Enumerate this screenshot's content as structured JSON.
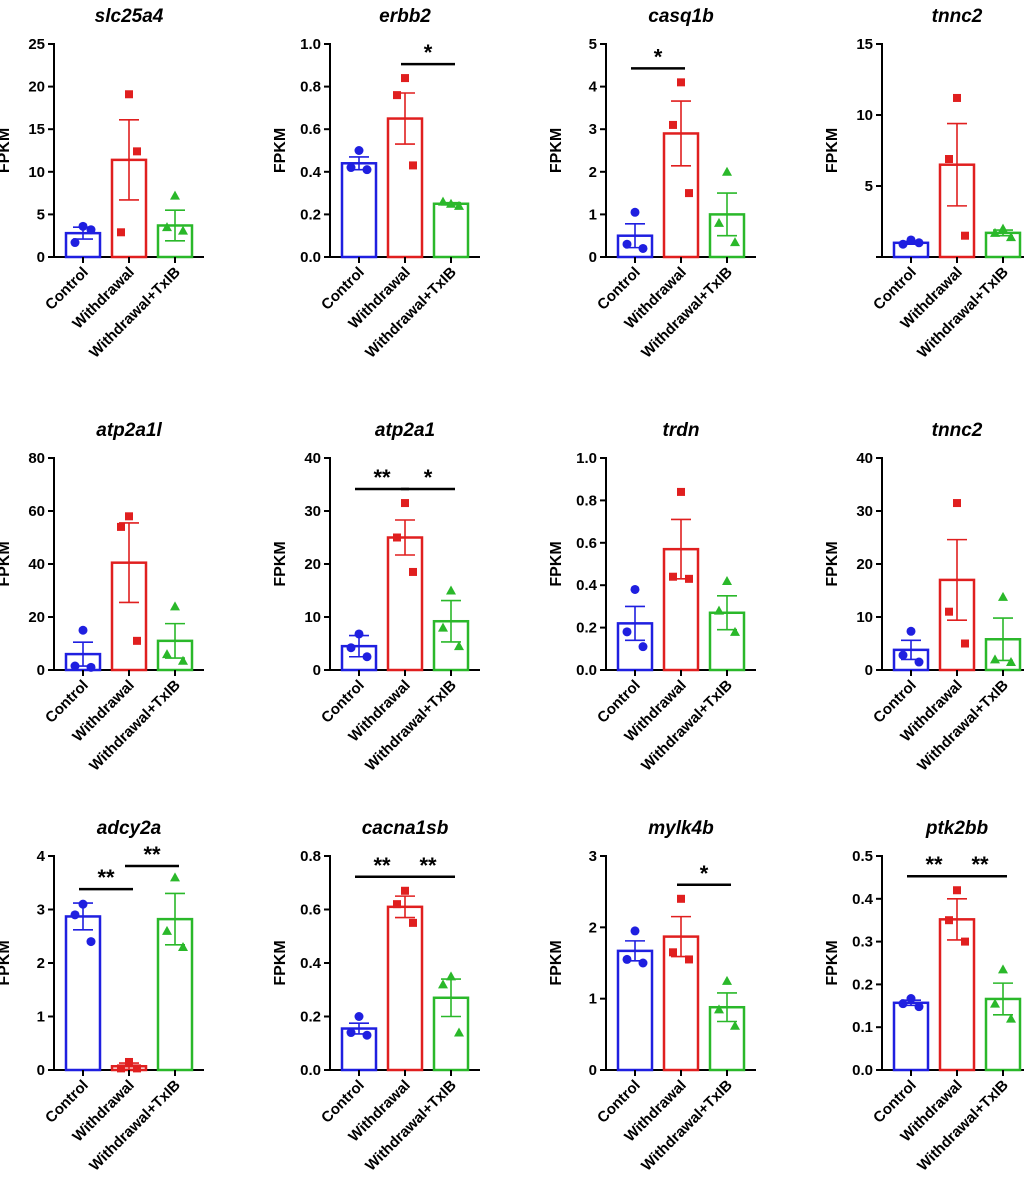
{
  "colors": {
    "control": "#1f1fe0",
    "withdrawal": "#e01f1f",
    "txib": "#2ab82a",
    "axis": "#000000"
  },
  "chart_data": [
    {
      "type": "bar",
      "title": "slc25a4",
      "ylabel": "FPKM",
      "categories": [
        "Control",
        "Withdrawal",
        "Withdrawal+TxIB"
      ],
      "ylim": [
        0,
        25
      ],
      "yticks": [
        "0",
        "5",
        "10",
        "15",
        "20",
        "25"
      ],
      "values": [
        2.8,
        11.4,
        3.7
      ],
      "sem": [
        0.7,
        4.7,
        1.8
      ],
      "points": [
        [
          3.6,
          1.7,
          3.2
        ],
        [
          19.1,
          2.9,
          12.4
        ],
        [
          7.2,
          3.5,
          3.1
        ]
      ],
      "significance": []
    },
    {
      "type": "bar",
      "title": "erbb2",
      "ylabel": "FPKM",
      "categories": [
        "Control",
        "Withdrawal",
        "Withdrawal+TxIB"
      ],
      "ylim": [
        0,
        1.0
      ],
      "yticks": [
        "0.0",
        "0.2",
        "0.4",
        "0.6",
        "0.8",
        "1.0"
      ],
      "values": [
        0.44,
        0.65,
        0.25
      ],
      "sem": [
        0.03,
        0.12,
        0.005
      ],
      "points": [
        [
          0.5,
          0.42,
          0.41
        ],
        [
          0.84,
          0.76,
          0.43
        ],
        [
          0.25,
          0.26,
          0.24
        ]
      ],
      "significance": [
        {
          "from": 1,
          "to": 2,
          "label": "*"
        }
      ]
    },
    {
      "type": "bar",
      "title": "casq1b",
      "ylabel": "FPKM",
      "categories": [
        "Control",
        "Withdrawal",
        "Withdrawal+TxIB"
      ],
      "ylim": [
        0,
        5
      ],
      "yticks": [
        "0",
        "1",
        "2",
        "3",
        "4",
        "5"
      ],
      "values": [
        0.5,
        2.9,
        1.0
      ],
      "sem": [
        0.28,
        0.76,
        0.5
      ],
      "points": [
        [
          1.05,
          0.3,
          0.2
        ],
        [
          4.1,
          3.1,
          1.5
        ],
        [
          2.0,
          0.8,
          0.35
        ]
      ],
      "significance": [
        {
          "from": 0,
          "to": 1,
          "label": "*"
        }
      ]
    },
    {
      "type": "bar",
      "title": "tnnc2",
      "ylabel": "FPKM",
      "categories": [
        "Control",
        "Withdrawal",
        "Withdrawal+TxIB"
      ],
      "ylim": [
        0,
        15
      ],
      "yticks": [
        "",
        "5",
        "10",
        "15"
      ],
      "values": [
        1.0,
        6.5,
        1.7
      ],
      "sem": [
        0.1,
        2.9,
        0.2
      ],
      "points": [
        [
          1.2,
          0.9,
          1.0
        ],
        [
          11.2,
          6.9,
          1.5
        ],
        [
          2.0,
          1.7,
          1.4
        ]
      ],
      "significance": []
    },
    {
      "type": "bar",
      "title": "atp2a1l",
      "ylabel": "FPKM",
      "categories": [
        "Control",
        "Withdrawal",
        "Withdrawal+TxIB"
      ],
      "ylim": [
        0,
        80
      ],
      "yticks": [
        "0",
        "20",
        "40",
        "60",
        "80"
      ],
      "values": [
        6.0,
        40.5,
        11.0
      ],
      "sem": [
        4.5,
        15.0,
        6.5
      ],
      "points": [
        [
          15.0,
          1.5,
          1.0
        ],
        [
          58.0,
          54.0,
          11.0
        ],
        [
          24.0,
          6.0,
          3.5
        ]
      ],
      "significance": []
    },
    {
      "type": "bar",
      "title": "atp2a1",
      "ylabel": "FPKM",
      "categories": [
        "Control",
        "Withdrawal",
        "Withdrawal+TxIB"
      ],
      "ylim": [
        0,
        40
      ],
      "yticks": [
        "0",
        "10",
        "20",
        "30",
        "40"
      ],
      "values": [
        4.5,
        25.0,
        9.2
      ],
      "sem": [
        2.0,
        3.3,
        3.9
      ],
      "points": [
        [
          6.8,
          4.2,
          2.5
        ],
        [
          31.5,
          25.0,
          18.5
        ],
        [
          15.0,
          8.0,
          4.5
        ]
      ],
      "significance": [
        {
          "from": 0,
          "to": 1,
          "label": "**"
        },
        {
          "from": 1,
          "to": 2,
          "label": "*"
        }
      ]
    },
    {
      "type": "bar",
      "title": "trdn",
      "ylabel": "FPKM",
      "categories": [
        "Control",
        "Withdrawal",
        "Withdrawal+TxIB"
      ],
      "ylim": [
        0,
        1.0
      ],
      "yticks": [
        "0.0",
        "0.2",
        "0.4",
        "0.6",
        "0.8",
        "1.0"
      ],
      "values": [
        0.22,
        0.57,
        0.27
      ],
      "sem": [
        0.08,
        0.14,
        0.08
      ],
      "points": [
        [
          0.38,
          0.18,
          0.11
        ],
        [
          0.84,
          0.44,
          0.43
        ],
        [
          0.42,
          0.28,
          0.18
        ]
      ],
      "significance": []
    },
    {
      "type": "bar",
      "title": "tnnc2",
      "ylabel": "FPKM",
      "categories": [
        "Control",
        "Withdrawal",
        "Withdrawal+TxIB"
      ],
      "ylim": [
        0,
        40
      ],
      "yticks": [
        "0",
        "10",
        "20",
        "30",
        "40"
      ],
      "values": [
        3.8,
        17.0,
        5.8
      ],
      "sem": [
        1.8,
        7.6,
        4.0
      ],
      "points": [
        [
          7.3,
          2.8,
          1.5
        ],
        [
          31.5,
          11.0,
          5.0
        ],
        [
          13.8,
          2.0,
          1.5
        ]
      ],
      "significance": []
    },
    {
      "type": "bar",
      "title": "adcy2a",
      "ylabel": "FPKM",
      "categories": [
        "Control",
        "Withdrawal",
        "Withdrawal+TxIB"
      ],
      "ylim": [
        0,
        4
      ],
      "yticks": [
        "0",
        "1",
        "2",
        "3",
        "4"
      ],
      "values": [
        2.87,
        0.07,
        2.82
      ],
      "sem": [
        0.25,
        0.06,
        0.48
      ],
      "points": [
        [
          3.1,
          2.9,
          2.4
        ],
        [
          0.15,
          0.03,
          0.03
        ],
        [
          3.6,
          2.6,
          2.3
        ]
      ],
      "significance": [
        {
          "from": 0,
          "to": 1,
          "label": "**"
        },
        {
          "from": 1,
          "to": 2,
          "label": "**"
        }
      ]
    },
    {
      "type": "bar",
      "title": "cacna1sb",
      "ylabel": "FPKM",
      "categories": [
        "Control",
        "Withdrawal",
        "Withdrawal+TxIB"
      ],
      "ylim": [
        0,
        0.8
      ],
      "yticks": [
        "0.0",
        "0.2",
        "0.4",
        "0.6",
        "0.8"
      ],
      "values": [
        0.155,
        0.61,
        0.27
      ],
      "sem": [
        0.02,
        0.04,
        0.07
      ],
      "points": [
        [
          0.2,
          0.14,
          0.13
        ],
        [
          0.67,
          0.62,
          0.55
        ],
        [
          0.35,
          0.32,
          0.14
        ]
      ],
      "significance": [
        {
          "from": 0,
          "to": 1,
          "label": "**"
        },
        {
          "from": 1,
          "to": 2,
          "label": "**"
        }
      ]
    },
    {
      "type": "bar",
      "title": "mylk4b",
      "ylabel": "FPKM",
      "categories": [
        "Control",
        "Withdrawal",
        "Withdrawal+TxIB"
      ],
      "ylim": [
        0,
        3
      ],
      "yticks": [
        "0",
        "1",
        "2",
        "3"
      ],
      "values": [
        1.67,
        1.87,
        0.88
      ],
      "sem": [
        0.14,
        0.28,
        0.2
      ],
      "points": [
        [
          1.95,
          1.55,
          1.5
        ],
        [
          2.4,
          1.65,
          1.55
        ],
        [
          1.25,
          0.85,
          0.62
        ]
      ],
      "significance": [
        {
          "from": 1,
          "to": 2,
          "label": "*"
        }
      ]
    },
    {
      "type": "bar",
      "title": "ptk2bb",
      "ylabel": "FPKM",
      "categories": [
        "Control",
        "Withdrawal",
        "Withdrawal+TxIB"
      ],
      "ylim": [
        0,
        0.5
      ],
      "yticks": [
        "0.0",
        "0.1",
        "0.2",
        "0.3",
        "0.4",
        "0.5"
      ],
      "values": [
        0.157,
        0.352,
        0.166
      ],
      "sem": [
        0.006,
        0.048,
        0.037
      ],
      "points": [
        [
          0.167,
          0.155,
          0.148
        ],
        [
          0.42,
          0.35,
          0.3
        ],
        [
          0.235,
          0.155,
          0.12
        ]
      ],
      "significance": [
        {
          "from": 0,
          "to": 1,
          "label": "**"
        },
        {
          "from": 1,
          "to": 2,
          "label": "**"
        }
      ]
    }
  ]
}
